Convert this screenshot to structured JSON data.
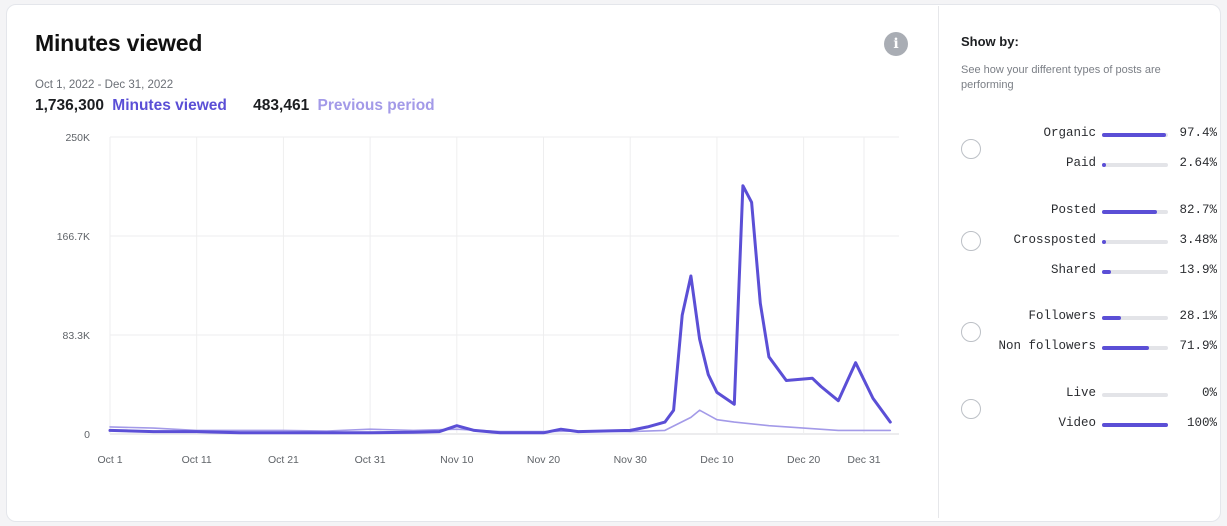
{
  "header": {
    "title": "Minutes viewed",
    "date_range": "Oct 1, 2022 - Dec 31, 2022",
    "current_value": "1,736,300",
    "current_label": "Minutes viewed",
    "previous_value": "483,461",
    "previous_label": "Previous period",
    "info_icon": "info-icon"
  },
  "colors": {
    "primary": "#5b4fd6",
    "previous": "#a39ae8",
    "grid": "#eeeeef"
  },
  "chart_data": {
    "type": "line",
    "title": "Minutes viewed",
    "xlabel": "",
    "ylabel": "",
    "ylim": [
      0,
      250000
    ],
    "y_ticks": [
      "0",
      "83.3K",
      "166.7K",
      "250K"
    ],
    "y_tick_values": [
      0,
      83300,
      166700,
      250000
    ],
    "x_ticks": [
      "Oct 1",
      "Oct 11",
      "Oct 21",
      "Oct 31",
      "Nov 10",
      "Nov 20",
      "Nov 30",
      "Dec 10",
      "Dec 20",
      "Dec 31"
    ],
    "x_range": [
      "2022-10-01",
      "2022-12-31"
    ],
    "grid": true,
    "series": [
      {
        "name": "Minutes viewed",
        "color": "#5b4fd6",
        "points": [
          [
            "2022-10-01",
            3000
          ],
          [
            "2022-10-06",
            2000
          ],
          [
            "2022-10-11",
            2000
          ],
          [
            "2022-10-16",
            1000
          ],
          [
            "2022-10-21",
            1000
          ],
          [
            "2022-10-26",
            1000
          ],
          [
            "2022-10-31",
            1000
          ],
          [
            "2022-11-05",
            1500
          ],
          [
            "2022-11-08",
            2000
          ],
          [
            "2022-11-10",
            7000
          ],
          [
            "2022-11-12",
            3000
          ],
          [
            "2022-11-15",
            1000
          ],
          [
            "2022-11-20",
            1000
          ],
          [
            "2022-11-22",
            4000
          ],
          [
            "2022-11-24",
            2000
          ],
          [
            "2022-11-30",
            3000
          ],
          [
            "2022-12-02",
            6000
          ],
          [
            "2022-12-04",
            10000
          ],
          [
            "2022-12-05",
            20000
          ],
          [
            "2022-12-06",
            100000
          ],
          [
            "2022-12-07",
            133000
          ],
          [
            "2022-12-08",
            80000
          ],
          [
            "2022-12-09",
            50000
          ],
          [
            "2022-12-10",
            35000
          ],
          [
            "2022-12-12",
            25000
          ],
          [
            "2022-12-13",
            209000
          ],
          [
            "2022-12-14",
            195000
          ],
          [
            "2022-12-15",
            110000
          ],
          [
            "2022-12-16",
            65000
          ],
          [
            "2022-12-18",
            45000
          ],
          [
            "2022-12-21",
            47000
          ],
          [
            "2022-12-22",
            40000
          ],
          [
            "2022-12-24",
            28000
          ],
          [
            "2022-12-26",
            60000
          ],
          [
            "2022-12-28",
            30000
          ],
          [
            "2022-12-30",
            10000
          ]
        ]
      },
      {
        "name": "Previous period",
        "color": "#a39ae8",
        "points": [
          [
            "2022-10-01",
            6000
          ],
          [
            "2022-10-06",
            5000
          ],
          [
            "2022-10-11",
            3000
          ],
          [
            "2022-10-16",
            3000
          ],
          [
            "2022-10-21",
            3000
          ],
          [
            "2022-10-26",
            2500
          ],
          [
            "2022-10-31",
            4000
          ],
          [
            "2022-11-05",
            3000
          ],
          [
            "2022-11-10",
            4000
          ],
          [
            "2022-11-15",
            2000
          ],
          [
            "2022-11-20",
            2000
          ],
          [
            "2022-11-25",
            2500
          ],
          [
            "2022-11-30",
            2000
          ],
          [
            "2022-12-04",
            3000
          ],
          [
            "2022-12-07",
            14000
          ],
          [
            "2022-12-08",
            20000
          ],
          [
            "2022-12-10",
            12000
          ],
          [
            "2022-12-12",
            10000
          ],
          [
            "2022-12-16",
            7000
          ],
          [
            "2022-12-20",
            5000
          ],
          [
            "2022-12-24",
            3000
          ],
          [
            "2022-12-30",
            3000
          ]
        ]
      }
    ]
  },
  "sidebar": {
    "heading": "Show by:",
    "description": "See how your different types of posts are performing",
    "groups": [
      {
        "rows": [
          {
            "label": "Organic",
            "percent": "97.4%",
            "fraction": 0.974
          },
          {
            "label": "Paid",
            "percent": "2.64%",
            "fraction": 0.0264
          }
        ]
      },
      {
        "rows": [
          {
            "label": "Posted",
            "percent": "82.7%",
            "fraction": 0.827
          },
          {
            "label": "Crossposted",
            "percent": "3.48%",
            "fraction": 0.0348
          },
          {
            "label": "Shared",
            "percent": "13.9%",
            "fraction": 0.139
          }
        ]
      },
      {
        "rows": [
          {
            "label": "Followers",
            "percent": "28.1%",
            "fraction": 0.281
          },
          {
            "label": "Non followers",
            "percent": "71.9%",
            "fraction": 0.719
          }
        ]
      },
      {
        "rows": [
          {
            "label": "Live",
            "percent": "0%",
            "fraction": 0
          },
          {
            "label": "Video",
            "percent": "100%",
            "fraction": 1.0
          }
        ]
      }
    ]
  }
}
